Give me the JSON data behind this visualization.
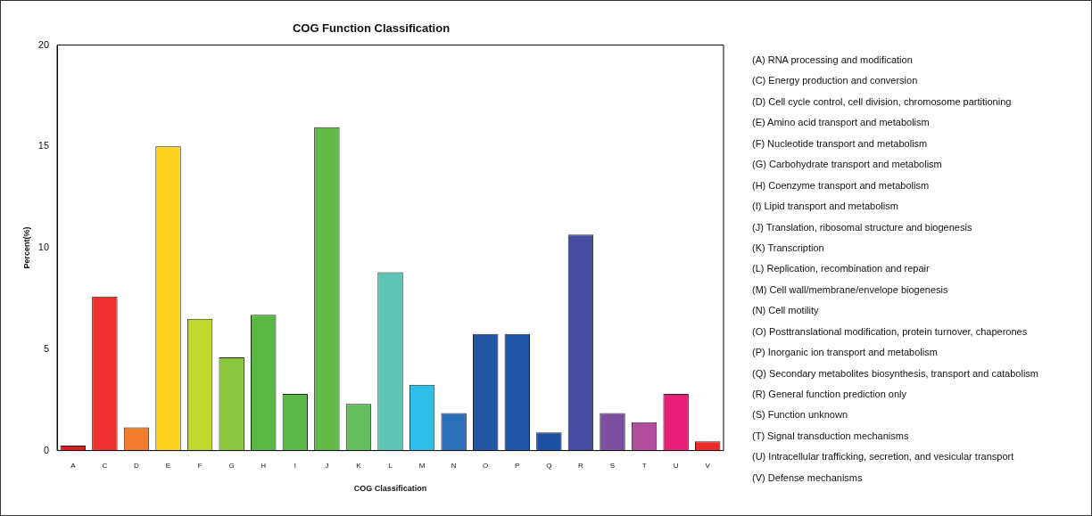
{
  "chart_data": {
    "type": "bar",
    "title": "COG Function Classification",
    "xlabel": "COG Classification",
    "ylabel": "Percent(%)",
    "categories": [
      "A",
      "C",
      "D",
      "E",
      "F",
      "G",
      "H",
      "I",
      "J",
      "K",
      "L",
      "M",
      "N",
      "O",
      "P",
      "Q",
      "R",
      "S",
      "T",
      "U",
      "V"
    ],
    "values": [
      0.25,
      7.6,
      1.15,
      15.0,
      6.5,
      4.6,
      6.7,
      2.8,
      15.95,
      2.3,
      8.8,
      3.25,
      1.85,
      5.75,
      5.75,
      0.9,
      10.65,
      1.85,
      1.4,
      2.8,
      0.45
    ],
    "colors": [
      "#e41a1c",
      "#ee3030",
      "#f07c2c",
      "#fdd31f",
      "#c2d72e",
      "#8cc63f",
      "#5cb846",
      "#5bb848",
      "#62bb46",
      "#66bd5f",
      "#5ec4b3",
      "#2ebfe8",
      "#2b6fb8",
      "#2155a5",
      "#2155a5",
      "#1f4fa0",
      "#474da0",
      "#7c4e9e",
      "#b34d9e",
      "#e91e79",
      "#ee2a2a"
    ],
    "ylim": [
      0,
      20
    ],
    "yticks": [
      0,
      5,
      10,
      15,
      20
    ],
    "grid": false,
    "legend": false,
    "annotations": [
      "(A) RNA processing and modification",
      "(C) Energy production and conversion",
      "(D) Cell cycle control, cell division, chromosome partitioning",
      "(E) Amino acid transport and metabolism",
      "(F) Nucleotide transport and metabolism",
      "(G) Carbohydrate transport and metabolism",
      "(H) Coenzyme transport and metabolism",
      "(I) Lipid transport and metabolism",
      "(J) Translation, ribosomal structure and biogenesis",
      "(K) Transcription",
      "(L) Replication, recombination and repair",
      "(M) Cell wall/membrane/envelope biogenesis",
      "(N) Cell motility",
      "(O) Posttranslational modification, protein turnover, chaperones",
      "(P) Inorganic ion transport and metabolism",
      "(Q) Secondary metabolites biosynthesis, transport and catabolism",
      "(R) General function prediction only",
      "(S) Function unknown",
      "(T) Signal transduction mechanisms",
      "(U) Intracellular trafficking, secretion, and vesicular transport",
      "(V) Defense mechanisms"
    ]
  }
}
